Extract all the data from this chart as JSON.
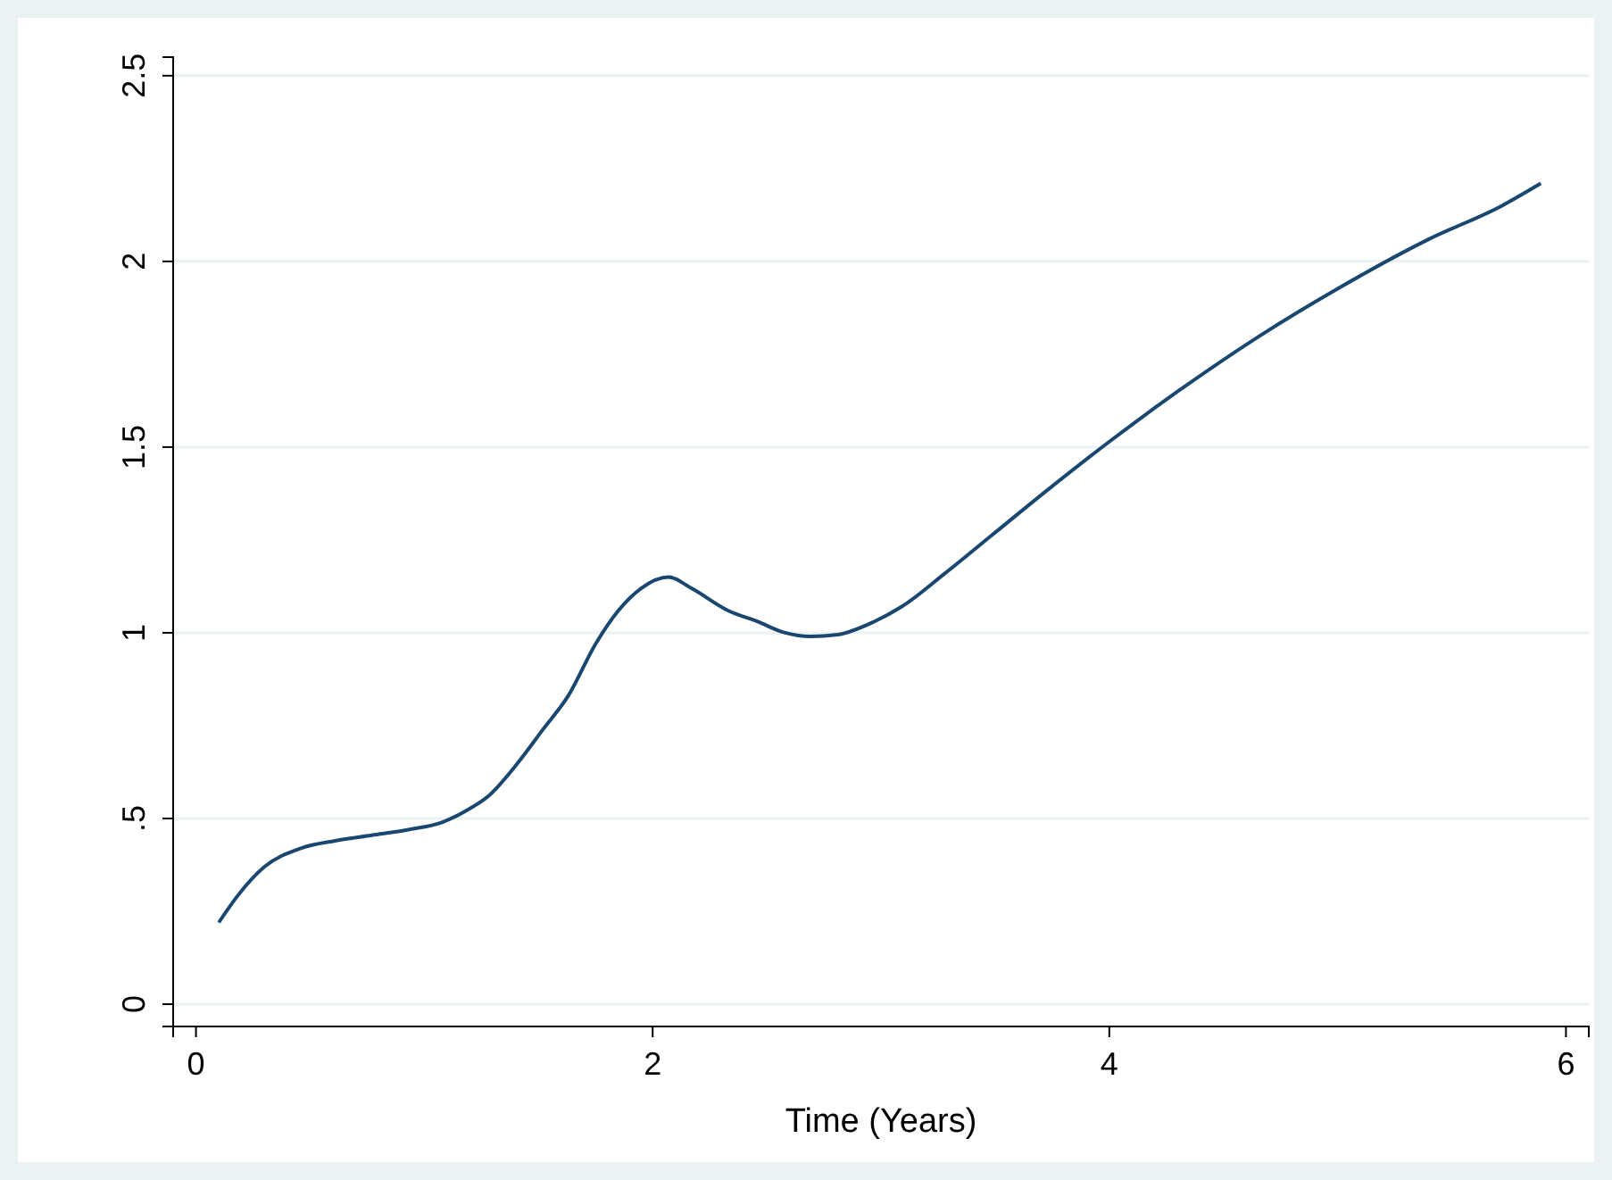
{
  "chart_data": {
    "type": "line",
    "xlabel": "Time (Years)",
    "x": [
      0.1,
      0.18,
      0.3,
      0.46,
      0.61,
      0.77,
      0.93,
      1.08,
      1.18,
      1.28,
      1.41,
      1.52,
      1.63,
      1.75,
      1.85,
      1.95,
      2.07,
      2.17,
      2.33,
      2.46,
      2.58,
      2.69,
      2.81,
      2.97,
      3.09,
      3.28,
      3.48,
      3.72,
      3.99,
      4.3,
      4.66,
      5.01,
      5.4,
      5.72,
      5.89
    ],
    "series": [
      {
        "color": "#1a476f",
        "values": [
          0.22,
          0.29,
          0.37,
          0.42,
          0.44,
          0.455,
          0.47,
          0.49,
          0.52,
          0.56,
          0.65,
          0.74,
          0.83,
          0.97,
          1.06,
          1.12,
          1.15,
          1.12,
          1.06,
          1.03,
          1.0,
          0.99,
          0.995,
          1.03,
          1.07,
          1.16,
          1.26,
          1.38,
          1.51,
          1.65,
          1.8,
          1.93,
          2.06,
          2.15,
          2.21
        ]
      }
    ],
    "xlim": [
      -0.1,
      6.1
    ],
    "ylim": [
      -0.06,
      2.55
    ],
    "xticks": [
      0,
      2,
      4,
      6
    ],
    "yticks": [
      0,
      {
        "value": 0.5,
        "label": ".5"
      },
      1,
      1.5,
      2,
      2.5
    ],
    "grid": "y",
    "marker": "none",
    "line_style": "solid"
  }
}
